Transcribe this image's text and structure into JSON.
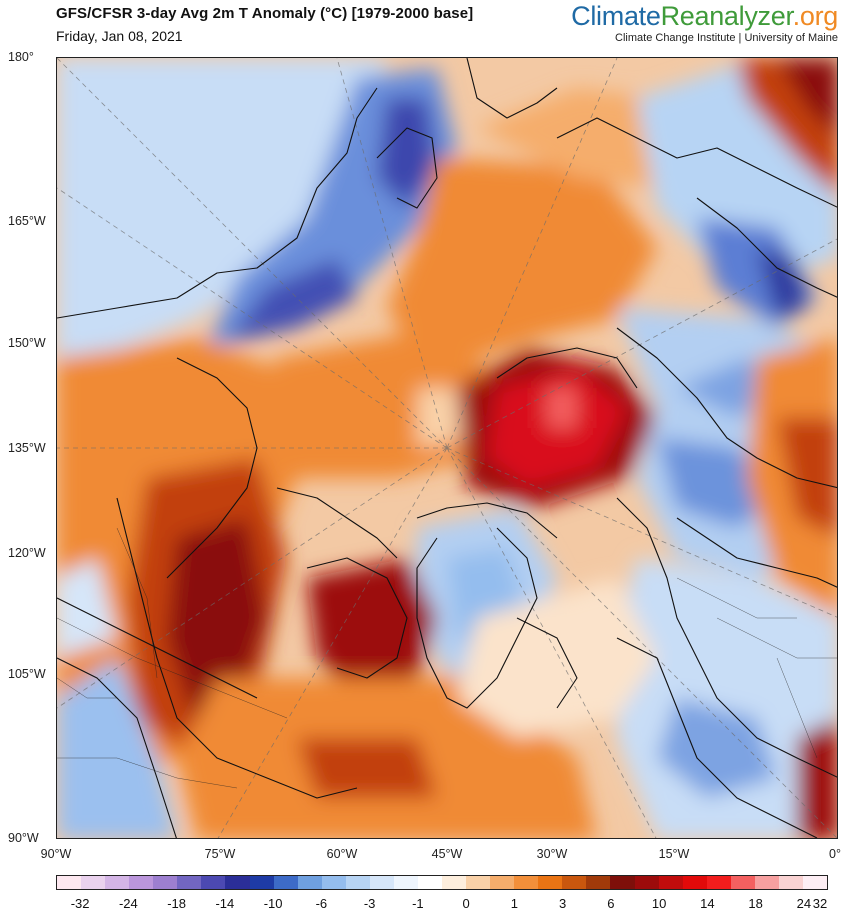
{
  "header": {
    "title": "GFS/CFSR 3-day Avg 2m T Anomaly (°C) [1979-2000 base]",
    "date": "Friday, Jan 08, 2021",
    "brand_part1": "Climate",
    "brand_part2": "Reanalyzer",
    "brand_part3": ".org",
    "affiliation": "Climate Change Institute | University of Maine"
  },
  "map": {
    "projection_note_hidden": "",
    "latitude_labels": [
      "180°",
      "165°W",
      "150°W",
      "135°W",
      "120°W",
      "105°W",
      "90°W"
    ],
    "longitude_labels": [
      "90°W",
      "75°W",
      "60°W",
      "45°W",
      "30°W",
      "15°W",
      "0°"
    ]
  },
  "colorbar": {
    "colors": [
      "#fde8f0",
      "#ead2ee",
      "#d4b5e6",
      "#bb96dc",
      "#9d7fd0",
      "#7266c2",
      "#4c49b2",
      "#2b2e98",
      "#1e3ba6",
      "#3d6bc8",
      "#6fa0e0",
      "#94bdee",
      "#b7d4f4",
      "#d6e6f9",
      "#eef5fd",
      "#ffffff",
      "#fdeedd",
      "#f9d1a8",
      "#f5ad6c",
      "#f28f3a",
      "#ea7414",
      "#c9570e",
      "#a13a0a",
      "#7e0f0a",
      "#9c0b0b",
      "#c10c0c",
      "#e20a0a",
      "#f21d1d",
      "#f46060",
      "#f7a0a0",
      "#f9d2d2",
      "#fdeef4"
    ],
    "labels": [
      "-32",
      "-24",
      "-18",
      "-14",
      "-10",
      "-6",
      "-3",
      "-1",
      "0",
      "1",
      "3",
      "6",
      "10",
      "14",
      "18",
      "24",
      "32"
    ]
  },
  "palette": {
    "cold_deep": "#3a44b0",
    "cold": "#6c93dc",
    "cool": "#b3cff2",
    "neutral": "#ffffff",
    "warm": "#f08a34",
    "hot": "#c2410c",
    "very_hot": "#7a0b0b",
    "extreme": "#d9101a"
  }
}
